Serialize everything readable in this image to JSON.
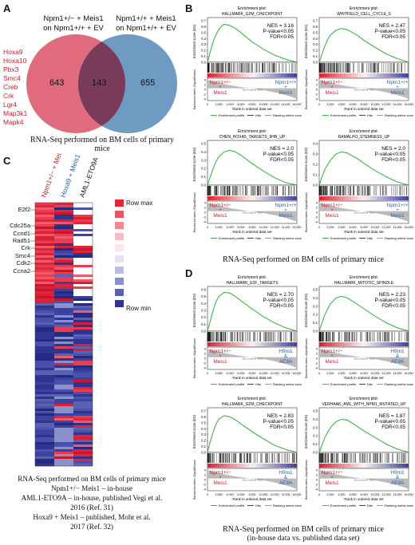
{
  "panels": {
    "A": "A",
    "B": "B",
    "C": "C",
    "D": "D"
  },
  "venn": {
    "left_label_1": "Npm1+/− + Meis1",
    "left_label_2": "on Npm1+/+ + EV",
    "right_label_1": "Npm1+/+ + Meis1",
    "right_label_2": "on Npm1+/+ + EV",
    "left_count": "643",
    "overlap_count": "143",
    "right_count": "655",
    "genes": [
      "Hoxa9",
      "Hoxa10",
      "Pbx3",
      "Smc4",
      "Creb",
      "Crk",
      "Lgr4",
      "Map3k1",
      "Mapk4"
    ],
    "caption": "RNA-Seq performed on BM cells of primary mice",
    "colors": {
      "left": "#e06b7d",
      "right": "#6f9ac2",
      "overlap": "#7a3b5a",
      "genes": "#c8202e"
    }
  },
  "gsea_common": {
    "x_axis_label": "Rank in ordered data set",
    "y_axis_label": "Enrichment score (ES)",
    "ranked_label": "Ranked list metric (Signal2Noise)",
    "x_ticks": [
      "0",
      "2,000",
      "4,000",
      "6,000",
      "8,000",
      "10,000",
      "12,000",
      "14,000",
      "16,000"
    ],
    "legend_profile": "Enrichment profile",
    "legend_hits": "Hits",
    "legend_metric": "Ranking metric scores",
    "enrichment_plot_label": "Enrichment plot:",
    "zero_cross": "Zero cross at 7690"
  },
  "chart_data": [
    {
      "type": "line",
      "title": "HALLMARK_G2M_CHECKPOINT",
      "nes": "NES = 3.16",
      "p": "P-value<0.05",
      "fdr": "FDR<0.05",
      "left_group": [
        "Npm1+/−",
        "+",
        "Meis1"
      ],
      "right_group": [
        "Npm1+/+",
        "+",
        "Meis1"
      ],
      "ylim": [
        0,
        0.7
      ],
      "yticks": [
        "0.7",
        "0.6",
        "0.5",
        "0.4",
        "0.3",
        "0.2",
        "0.1",
        "0.0"
      ],
      "x": [
        0,
        500,
        1000,
        1500,
        2000,
        2500,
        3000,
        4000,
        5000,
        6000,
        7000,
        8000,
        10000,
        12000,
        14000,
        16000
      ],
      "es": [
        0,
        0.18,
        0.34,
        0.46,
        0.55,
        0.61,
        0.64,
        0.62,
        0.57,
        0.5,
        0.42,
        0.34,
        0.22,
        0.12,
        0.05,
        0
      ]
    },
    {
      "type": "line",
      "title": "WHITFIELD_CELL_CYCLE_S",
      "nes": "NES = 2.47",
      "p": "P-value<0.05",
      "fdr": "FDR<0.05",
      "left_group": [
        "Npm1+/−",
        "+",
        "Meis1"
      ],
      "right_group": [
        "Npm1+/+",
        "+",
        "Meis1"
      ],
      "ylim": [
        0,
        0.7
      ],
      "yticks": [
        "0.7",
        "0.6",
        "0.5",
        "0.4",
        "0.3",
        "0.2",
        "0.1",
        "0.0"
      ],
      "x": [
        0,
        500,
        1000,
        1500,
        2000,
        3000,
        4000,
        5000,
        6000,
        7000,
        8000,
        10000,
        12000,
        14000,
        16000
      ],
      "es": [
        0,
        0.14,
        0.27,
        0.38,
        0.46,
        0.54,
        0.57,
        0.55,
        0.5,
        0.44,
        0.37,
        0.25,
        0.14,
        0.06,
        0
      ]
    },
    {
      "type": "line",
      "title": "CHEN_HOXA5_TARGETS_9HR_UP",
      "nes": "NES = 2.0",
      "p": "P-value<0.05",
      "fdr": "FDR<0.05",
      "left_group": [
        "Npm1+/−",
        "+",
        "Meis1"
      ],
      "right_group": [
        "Npm1+/+",
        "+",
        "Meis1"
      ],
      "ylim": [
        0,
        0.5
      ],
      "yticks": [
        "0.5",
        "0.4",
        "0.3",
        "0.2",
        "0.1",
        "0.0"
      ],
      "x": [
        0,
        500,
        1000,
        1500,
        2000,
        3000,
        4000,
        5000,
        6000,
        7000,
        8000,
        10000,
        12000,
        14000,
        16000
      ],
      "es": [
        0,
        0.1,
        0.2,
        0.28,
        0.34,
        0.4,
        0.42,
        0.4,
        0.36,
        0.31,
        0.26,
        0.17,
        0.09,
        0.03,
        0
      ]
    },
    {
      "type": "line",
      "title": "RAMALHO_STEMNESS_UP",
      "nes": "NES = 2.0",
      "p": "P-value<0.05",
      "fdr": "FDR<0.05",
      "left_group": [
        "Npm1+/−",
        "+",
        "Meis1"
      ],
      "right_group": [
        "Npm1+/+",
        "+",
        "Meis1"
      ],
      "ylim": [
        0,
        0.4
      ],
      "yticks": [
        "0.4",
        "0.3",
        "0.2",
        "0.1",
        "0.0"
      ],
      "x": [
        0,
        500,
        1000,
        2000,
        3000,
        4000,
        5000,
        6000,
        7000,
        8000,
        10000,
        12000,
        14000,
        16000
      ],
      "es": [
        0,
        0.08,
        0.15,
        0.24,
        0.3,
        0.32,
        0.31,
        0.28,
        0.25,
        0.21,
        0.14,
        0.08,
        0.03,
        0
      ]
    },
    {
      "type": "line",
      "title": "HALLMARK_E2F_TARGETS",
      "nes": "NES = 2.70",
      "p": "P-value<0.05",
      "fdr": "FDR<0.05",
      "left_group": [
        "Npm1+/−",
        "+",
        "Meis1"
      ],
      "right_group": [
        "H9m1",
        "&",
        "AE9A"
      ],
      "ylim": [
        0,
        0.6
      ],
      "yticks": [
        "0.6",
        "0.5",
        "0.4",
        "0.3",
        "0.2",
        "0.1",
        "0.0"
      ],
      "x": [
        0,
        500,
        1000,
        1500,
        2000,
        3000,
        4000,
        5000,
        6000,
        8000,
        10000,
        12000,
        14000,
        16000
      ],
      "es": [
        0,
        0.15,
        0.3,
        0.42,
        0.5,
        0.56,
        0.55,
        0.5,
        0.44,
        0.32,
        0.21,
        0.12,
        0.05,
        0
      ]
    },
    {
      "type": "line",
      "title": "HALLMARK_MITOTIC_SPINDLE",
      "nes": "NES = 2.23",
      "p": "P-value<0.05",
      "fdr": "FDR<0.05",
      "left_group": [
        "Npm1+/−",
        "+",
        "Meis1"
      ],
      "right_group": [
        "H9m1",
        "&",
        "AE9A"
      ],
      "ylim": [
        0,
        0.5
      ],
      "yticks": [
        "0.5",
        "0.4",
        "0.3",
        "0.2",
        "0.1",
        "0.0"
      ],
      "x": [
        0,
        500,
        1000,
        2000,
        3000,
        4000,
        5000,
        6000,
        8000,
        10000,
        12000,
        14000,
        16000
      ],
      "es": [
        0,
        0.1,
        0.2,
        0.33,
        0.4,
        0.42,
        0.4,
        0.36,
        0.27,
        0.18,
        0.1,
        0.04,
        0
      ]
    },
    {
      "type": "line",
      "title": "HALLMARK_G2M_CHECKPOINT",
      "nes": "NES = 2.83",
      "p": "P-value<0.05",
      "fdr": "FDR<0.05",
      "left_group": [
        "Npm1+/−",
        "+",
        "Meis1"
      ],
      "right_group": [
        "H9m1",
        "&",
        "AE9A"
      ],
      "ylim": [
        0,
        0.7
      ],
      "yticks": [
        "0.7",
        "0.6",
        "0.5",
        "0.4",
        "0.3",
        "0.2",
        "0.1",
        "0.0"
      ],
      "x": [
        0,
        500,
        1000,
        1500,
        2000,
        3000,
        4000,
        5000,
        6000,
        8000,
        10000,
        12000,
        14000,
        16000
      ],
      "es": [
        0,
        0.18,
        0.34,
        0.47,
        0.56,
        0.62,
        0.6,
        0.55,
        0.48,
        0.35,
        0.23,
        0.12,
        0.05,
        0
      ]
    },
    {
      "type": "line",
      "title": "VERHAAK_AML_WITH_NPM1_MUTATED_UP",
      "nes": "NES = 1.87",
      "p": "P-value<0.05",
      "fdr": "FDR<0.05",
      "left_group": [
        "Npm1+/−",
        "+",
        "Meis1"
      ],
      "right_group": [
        "H9m1",
        "&",
        "AE9A"
      ],
      "ylim": [
        0,
        0.5
      ],
      "yticks": [
        "0.5",
        "0.4",
        "0.3",
        "0.2",
        "0.1",
        "0.0"
      ],
      "x": [
        0,
        500,
        1000,
        2000,
        3000,
        4000,
        5000,
        6000,
        8000,
        10000,
        12000,
        14000,
        16000
      ],
      "es": [
        0,
        0.09,
        0.18,
        0.3,
        0.37,
        0.4,
        0.39,
        0.35,
        0.26,
        0.18,
        0.1,
        0.04,
        0
      ]
    }
  ],
  "caption_B": "RNA-Seq performed on BM cells of primary mice",
  "caption_D_1": "RNA-Seq performed on BM cells of primary mice",
  "caption_D_2": "(in-house data vs. published data set)",
  "heatmap": {
    "col_labels": [
      "Npm1+/− + Meis1",
      "Hoxa9 + Meis1",
      "AML1-ETO9A"
    ],
    "col_colors": [
      "#c8202e",
      "#2b5fa6",
      "#111111"
    ],
    "genes": [
      "E2f2",
      "Cdc25a",
      "Ccnd1",
      "Rad51",
      "Crk",
      "Smc4",
      "Cdk2",
      "Ccna2"
    ],
    "legend_max": "Row max",
    "legend_min": "Row min",
    "legend_colors": [
      "#e0253a",
      "#e85565",
      "#f08a95",
      "#f6bcc3",
      "#fce6e9",
      "#e4e4f1",
      "#b9bde0",
      "#8a90c9",
      "#5a61ae",
      "#2d3590"
    ],
    "caption": [
      "RNA-Seq performed on BM cells of primary mice",
      "Npm1+/− Meis1 – in-house",
      "AML1-ETO9A – in-house, published Vegi et al.",
      "2016 (Ref. 31)",
      "Hoxa9 + Meis1 – published, Mohr et al.",
      "2017 (Ref. 32)"
    ]
  }
}
